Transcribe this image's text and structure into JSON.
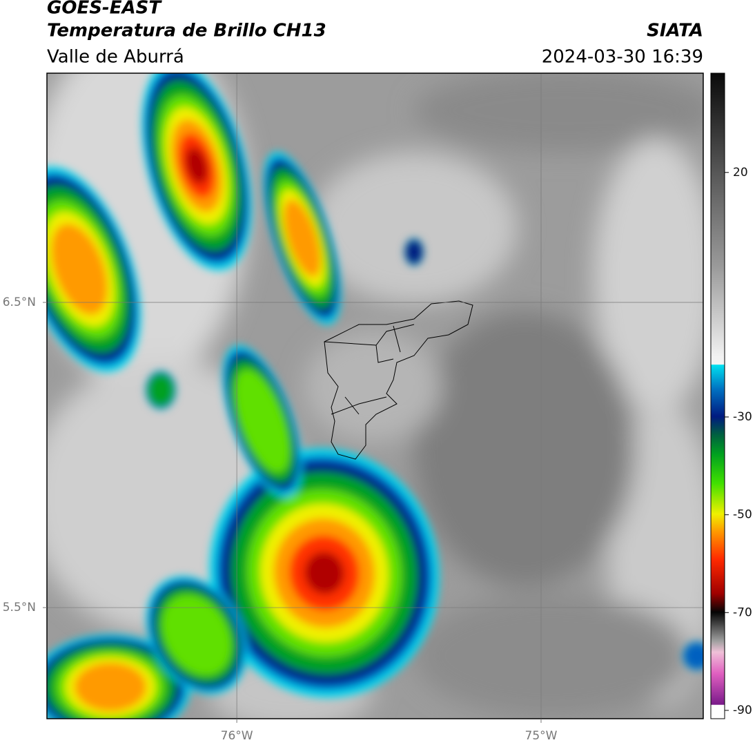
{
  "header": {
    "source": "GOES-EAST",
    "product": "Temperatura de Brillo CH13",
    "region": "Valle de Aburrá",
    "agency": "SIATA",
    "timestamp": "2024-03-30 16:39"
  },
  "map": {
    "xlim": [
      -76.624,
      -74.467
    ],
    "ylim": [
      5.136,
      7.251
    ],
    "xticks": [
      {
        "value": -76,
        "label": "76°W"
      },
      {
        "value": -75,
        "label": "75°W"
      }
    ],
    "yticks": [
      {
        "value": 6.5,
        "label": "6.5°N"
      },
      {
        "value": 5.5,
        "label": "5.5°N"
      }
    ],
    "grid": true
  },
  "colorbar": {
    "lim": [
      -91.7,
      40.3
    ],
    "ticks": [
      20,
      -30,
      -50,
      -70,
      -90
    ]
  }
}
